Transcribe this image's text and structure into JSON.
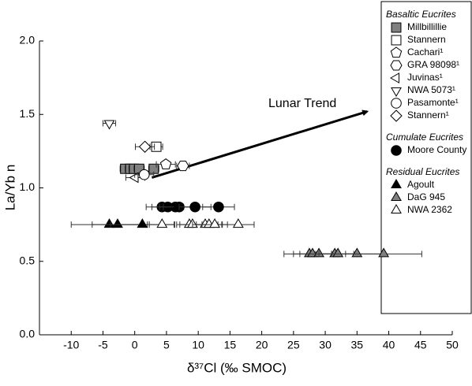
{
  "chart_data": {
    "type": "scatter",
    "xlabel": "δ³⁷Cl (‰ SMOC)",
    "ylabel": "La/Yb n",
    "xlim": [
      -15,
      50
    ],
    "xticks": [
      -10,
      -5,
      0,
      5,
      10,
      15,
      20,
      25,
      30,
      35,
      40,
      45,
      50
    ],
    "ylim": [
      0,
      2
    ],
    "yticks": [
      {
        "value": 0,
        "label": "0.0"
      },
      0.5,
      {
        "value": 1,
        "label": "1.0"
      },
      1.5,
      {
        "value": 2,
        "label": "2.0"
      }
    ],
    "annotation": {
      "text": "Lunar Trend",
      "x": [
        2.7,
        36.6
      ],
      "y": [
        1.07,
        1.52
      ]
    },
    "groups": [
      {
        "title": "Basaltic Eucrites",
        "series": [
          {
            "name": "Millbillillie",
            "marker": "square",
            "color": "#808080",
            "x": [
              -1.5,
              -0.7,
              -0.1,
              0.7,
              3.0
            ],
            "y": [
              1.13,
              1.13,
              1.13,
              1.13,
              1.13
            ],
            "xerr": [
              0.8,
              0.8,
              0.8,
              0.8,
              0.8
            ]
          },
          {
            "name": "Stannern",
            "marker": "square",
            "color": "#ffffff",
            "x": [
              3.4
            ],
            "y": [
              1.28
            ],
            "xerr": [
              1.0
            ]
          },
          {
            "name": "Cachari¹",
            "marker": "pentagon",
            "color": "#ffffff",
            "x": [
              4.9
            ],
            "y": [
              1.16
            ],
            "xerr": [
              1.5
            ]
          },
          {
            "name": "GRA 98098¹",
            "marker": "hexagon",
            "color": "#ffffff",
            "x": [
              7.6
            ],
            "y": [
              1.15
            ],
            "xerr": [
              1.0
            ]
          },
          {
            "name": "Juvinas¹",
            "marker": "left",
            "color": "#ffffff",
            "x": [
              0.1
            ],
            "y": [
              1.07
            ],
            "xerr": [
              1.5
            ]
          },
          {
            "name": "NWA 5073¹",
            "marker": "down",
            "color": "#ffffff",
            "x": [
              -4.0
            ],
            "y": [
              1.44
            ],
            "xerr": [
              1.0
            ]
          },
          {
            "name": "Pasamonte¹",
            "marker": "circle",
            "color": "#ffffff",
            "x": [
              1.5
            ],
            "y": [
              1.09
            ],
            "xerr": [
              1.5
            ]
          },
          {
            "name": "Stannern¹",
            "marker": "diamond",
            "color": "#ffffff",
            "x": [
              1.6
            ],
            "y": [
              1.28
            ],
            "xerr": [
              1.5
            ]
          }
        ]
      },
      {
        "title": "Cumulate Eucrites",
        "series": [
          {
            "name": "Moore County",
            "marker": "circle",
            "color": "#000000",
            "x": [
              4.3,
              5.2,
              6.4,
              7.0,
              9.5,
              13.2
            ],
            "y": [
              0.87,
              0.87,
              0.87,
              0.87,
              0.87,
              0.87
            ],
            "xerr": [
              2.5,
              2.5,
              2.5,
              2.5,
              2.5,
              2.5
            ]
          }
        ]
      },
      {
        "title": "Residual Eucrites",
        "series": [
          {
            "name": "Agoult",
            "marker": "up",
            "color": "#000000",
            "x": [
              -4.0,
              -2.7,
              1.2
            ],
            "y": [
              0.75,
              0.75,
              0.75
            ],
            "xerr": [
              6.0,
              4.0,
              5.0
            ]
          },
          {
            "name": "DaG 945",
            "marker": "up",
            "color": "#808080",
            "x": [
              27.5,
              28.0,
              29.0,
              31.5,
              32.0,
              35.0,
              39.2
            ],
            "y": [
              0.55,
              0.55,
              0.55,
              0.55,
              0.55,
              0.55,
              0.55
            ],
            "xerr": [
              4.0,
              3.0,
              3.0,
              3.0,
              3.0,
              4.0,
              6.0
            ]
          },
          {
            "name": "NWA 2362",
            "marker": "up",
            "color": "#ffffff",
            "x": [
              4.3,
              8.6,
              9.1,
              11.1,
              11.7,
              12.6,
              16.3
            ],
            "y": [
              0.75,
              0.75,
              0.75,
              0.75,
              0.75,
              0.75,
              0.75
            ],
            "xerr": [
              2.0,
              2.0,
              2.0,
              2.0,
              2.0,
              2.0,
              2.5
            ]
          }
        ]
      }
    ]
  }
}
